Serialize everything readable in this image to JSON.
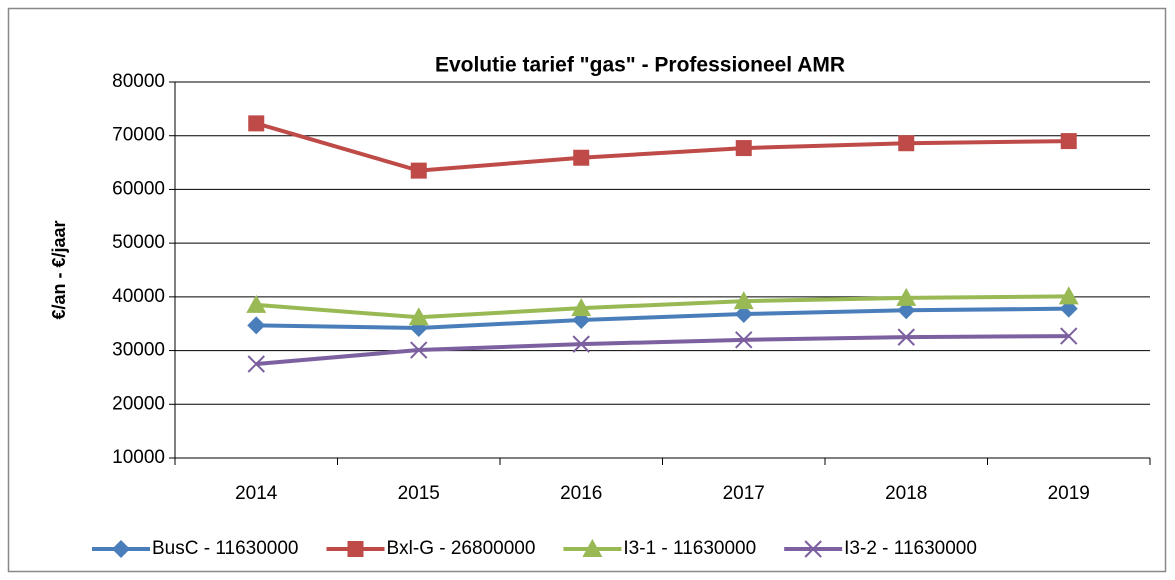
{
  "chart_data": {
    "type": "line",
    "title": "Evolutie tarief \"gas\" - Professioneel AMR",
    "y_label": "€/an - €/jaar",
    "categories": [
      "2014",
      "2015",
      "2016",
      "2017",
      "2018",
      "2019"
    ],
    "series": [
      {
        "name": "BusC - 11630000",
        "color": "#4a7ebb",
        "marker": "diamond",
        "values": [
          34700,
          34200,
          35700,
          36800,
          37500,
          37800
        ]
      },
      {
        "name": "Bxl-G - 26800000",
        "color": "#be4b48",
        "marker": "square",
        "values": [
          72300,
          63500,
          65900,
          67700,
          68600,
          69000
        ]
      },
      {
        "name": "I3-1 - 11630000",
        "color": "#98b954",
        "marker": "triangle",
        "values": [
          38500,
          36200,
          37900,
          39200,
          39800,
          40100
        ]
      },
      {
        "name": "I3-2 - 11630000",
        "color": "#7d60a0",
        "marker": "x",
        "values": [
          27500,
          30100,
          31200,
          32000,
          32500,
          32700
        ]
      }
    ],
    "ylim": [
      10000,
      80000
    ],
    "yticks": [
      10000,
      20000,
      30000,
      40000,
      50000,
      60000,
      70000,
      80000
    ],
    "grid": true,
    "legend": "bottom"
  }
}
